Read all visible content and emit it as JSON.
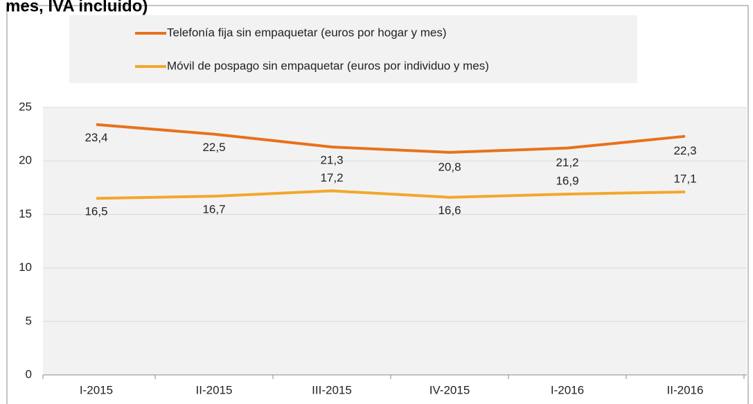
{
  "chart_data": {
    "type": "line",
    "title": "mes, IVA incluido)",
    "categories": [
      "I-2015",
      "II-2015",
      "III-2015",
      "IV-2015",
      "I-2016",
      "II-2016"
    ],
    "series": [
      {
        "name": "Telefonía fija sin empaquetar (euros por hogar y mes)",
        "color": "#e8711d",
        "values": [
          23.4,
          22.5,
          21.3,
          20.8,
          21.2,
          22.3
        ],
        "value_labels": [
          "23,4",
          "22,5",
          "21,3",
          "20,8",
          "21,2",
          "22,3"
        ]
      },
      {
        "name": "Móvil de pospago sin empaquetar (euros por individuo y mes)",
        "color": "#f2a72b",
        "values": [
          16.5,
          16.7,
          17.2,
          16.6,
          16.9,
          17.1
        ],
        "value_labels": [
          "16,5",
          "16,7",
          "17,2",
          "16,6",
          "16,9",
          "17,1"
        ]
      }
    ],
    "ylim": [
      0,
      25
    ],
    "yticks": [
      0,
      5,
      10,
      15,
      20,
      25
    ],
    "grid": true,
    "legend": "top"
  }
}
